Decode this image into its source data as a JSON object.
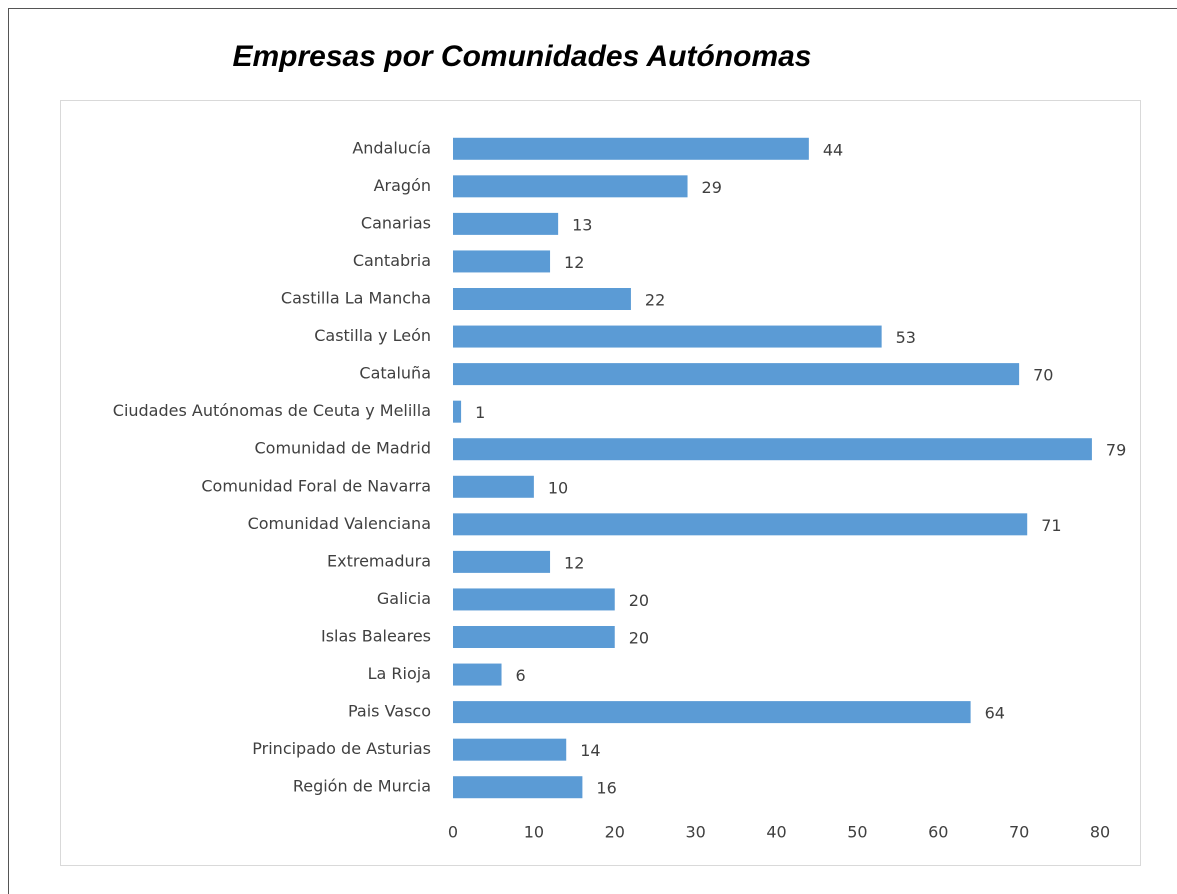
{
  "chart_data": {
    "type": "barh",
    "title": "Empresas por Comunidades Autónomas",
    "categories": [
      "Andalucía",
      "Aragón",
      "Canarias",
      "Cantabria",
      "Castilla La Mancha",
      "Castilla y León",
      "Cataluña",
      "Ciudades Autónomas de Ceuta y Melilla",
      "Comunidad de Madrid",
      "Comunidad Foral de Navarra",
      "Comunidad Valenciana",
      "Extremadura",
      "Galicia",
      "Islas Baleares",
      "La Rioja",
      "Pais Vasco",
      "Principado de Asturias",
      "Región de Murcia"
    ],
    "values": [
      44,
      29,
      13,
      12,
      22,
      53,
      70,
      1,
      79,
      10,
      71,
      12,
      20,
      20,
      6,
      64,
      14,
      16
    ],
    "color": "#5b9bd5",
    "xlim": [
      0,
      80
    ],
    "xticks": [
      0,
      10,
      20,
      30,
      40,
      50,
      60,
      70,
      80
    ],
    "grid": false
  }
}
